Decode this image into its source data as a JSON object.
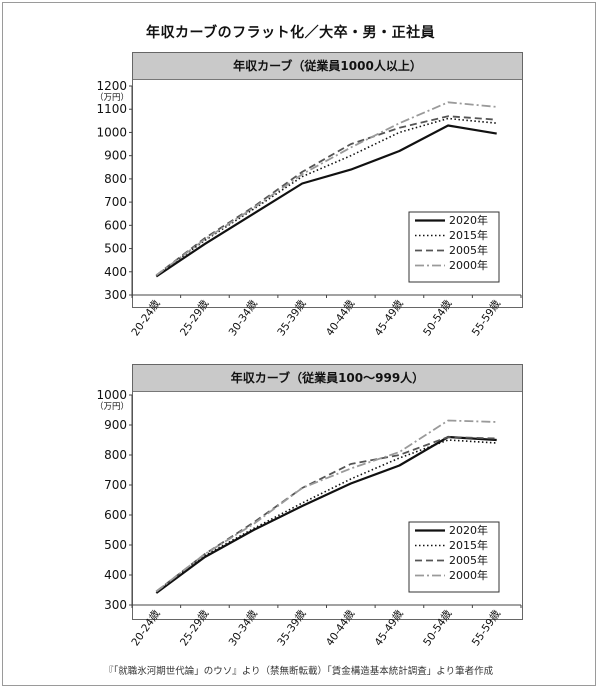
{
  "title": "年収カーブのフラット化／大卒・男・正社員",
  "footer": "『「就職氷河期世代論」のウソ』より（禁無断転載）「賃金構造基本統計調査」より筆者作成",
  "colors": {
    "2020年": "#111111",
    "2015年": "#111111",
    "2005年": "#555555",
    "2000年": "#9a9a9a"
  },
  "chart_data": [
    {
      "type": "line",
      "title": "年収カーブ（従業員1000人以上）",
      "ylabel": "（万円）",
      "ylim": [
        300,
        1200
      ],
      "yticks": [
        300,
        400,
        500,
        600,
        700,
        800,
        900,
        1000,
        1100,
        1200
      ],
      "categories": [
        "20-24歳",
        "25-29歳",
        "30-34歳",
        "35-39歳",
        "40-44歳",
        "45-49歳",
        "50-54歳",
        "55-59歳"
      ],
      "legend": "bottom-right",
      "series": [
        {
          "name": "2020年",
          "style": "solid",
          "values": [
            380,
            520,
            650,
            780,
            840,
            920,
            1030,
            995
          ]
        },
        {
          "name": "2015年",
          "style": "dotted",
          "values": [
            385,
            535,
            670,
            810,
            900,
            1000,
            1060,
            1040
          ]
        },
        {
          "name": "2005年",
          "style": "dashed",
          "values": [
            385,
            545,
            680,
            830,
            950,
            1020,
            1070,
            1055
          ]
        },
        {
          "name": "2000年",
          "style": "dashdot",
          "values": [
            385,
            540,
            675,
            820,
            935,
            1040,
            1130,
            1110
          ]
        }
      ]
    },
    {
      "type": "line",
      "title": "年収カーブ（従業員100〜999人）",
      "ylabel": "（万円）",
      "ylim": [
        300,
        1000
      ],
      "yticks": [
        300,
        400,
        500,
        600,
        700,
        800,
        900,
        1000
      ],
      "categories": [
        "20-24歳",
        "25-29歳",
        "30-34歳",
        "35-39歳",
        "40-44歳",
        "45-49歳",
        "50-54歳",
        "55-59歳"
      ],
      "legend": "bottom-right",
      "series": [
        {
          "name": "2020年",
          "style": "solid",
          "values": [
            340,
            460,
            550,
            630,
            705,
            765,
            860,
            850
          ]
        },
        {
          "name": "2015年",
          "style": "dotted",
          "values": [
            345,
            465,
            555,
            640,
            720,
            790,
            850,
            840
          ]
        },
        {
          "name": "2005年",
          "style": "dashed",
          "values": [
            345,
            470,
            575,
            690,
            770,
            800,
            860,
            855
          ]
        },
        {
          "name": "2000年",
          "style": "dashdot",
          "values": [
            345,
            470,
            570,
            690,
            755,
            810,
            915,
            910
          ]
        }
      ]
    }
  ]
}
